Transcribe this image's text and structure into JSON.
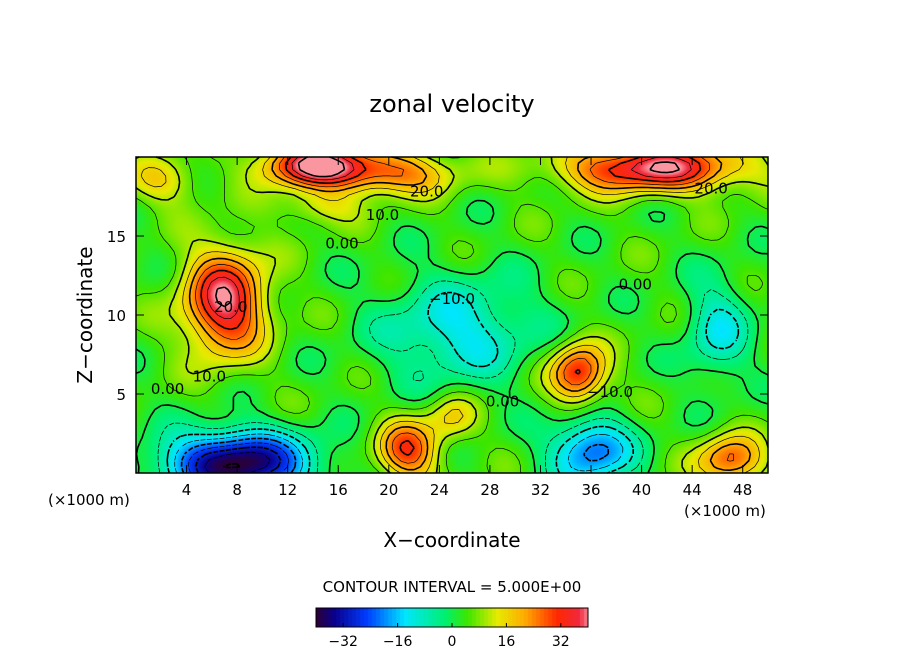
{
  "chart_data": {
    "type": "heatmap",
    "title": "zonal velocity",
    "xlabel": "X−coordinate",
    "ylabel": "Z−coordinate",
    "x_unit_left": "(×1000 m)",
    "x_unit_right": "(×1000 m)",
    "xlim": [
      0,
      50
    ],
    "ylim": [
      0,
      20
    ],
    "x_ticks": [
      4,
      8,
      12,
      16,
      20,
      24,
      28,
      32,
      36,
      40,
      44,
      48
    ],
    "y_ticks": [
      5,
      10,
      15
    ],
    "contour_interval_text": "CONTOUR INTERVAL = 5.000E+00",
    "colorbar": {
      "min": -40,
      "max": 40,
      "ticks": [
        -32,
        -16,
        0,
        16,
        32
      ],
      "tick_labels": [
        "−32",
        "−16",
        "0",
        "16",
        "32"
      ]
    },
    "contour_labels": [
      {
        "text": "20.0",
        "x": 23,
        "y": 17.5
      },
      {
        "text": "20.0",
        "x": 45.5,
        "y": 17.7
      },
      {
        "text": "10.0",
        "x": 19.5,
        "y": 16.0
      },
      {
        "text": "0.00",
        "x": 16.3,
        "y": 14.2
      },
      {
        "text": "20.0",
        "x": 7.5,
        "y": 10.2
      },
      {
        "text": "10.0",
        "x": 5.8,
        "y": 5.8
      },
      {
        "text": "0.00",
        "x": 2.5,
        "y": 5.0
      },
      {
        "text": "−10.0",
        "x": 25.0,
        "y": 10.7
      },
      {
        "text": "0.00",
        "x": 29.0,
        "y": 4.2
      },
      {
        "text": "−10.0",
        "x": 37.5,
        "y": 4.8
      },
      {
        "text": "0.00",
        "x": 39.5,
        "y": 11.6
      }
    ],
    "field_features": [
      {
        "x": 14,
        "y": 19.5,
        "amp": 36,
        "sx": 4,
        "sy": 1.4
      },
      {
        "x": 20,
        "y": 19.0,
        "amp": 22,
        "sx": 5,
        "sy": 1.4
      },
      {
        "x": 41,
        "y": 19.3,
        "amp": 36,
        "sx": 7,
        "sy": 1.5
      },
      {
        "x": 7,
        "y": 10.8,
        "amp": 36,
        "sx": 3.2,
        "sy": 3.3
      },
      {
        "x": 25.5,
        "y": 9.0,
        "amp": -16,
        "sx": 6,
        "sy": 3.3
      },
      {
        "x": 46,
        "y": 9.0,
        "amp": -14,
        "sx": 2.5,
        "sy": 3.2
      },
      {
        "x": 35,
        "y": 6.3,
        "amp": 30,
        "sx": 2.2,
        "sy": 1.9
      },
      {
        "x": 8,
        "y": 0.6,
        "amp": -44,
        "sx": 5.5,
        "sy": 2.0
      },
      {
        "x": 21.5,
        "y": 1.4,
        "amp": 26,
        "sx": 2.4,
        "sy": 1.9
      },
      {
        "x": 36,
        "y": 1.4,
        "amp": -26,
        "sx": 3.2,
        "sy": 2.1
      },
      {
        "x": 47,
        "y": 0.8,
        "amp": 24,
        "sx": 2.6,
        "sy": 1.6
      },
      {
        "x": 14.5,
        "y": 16.8,
        "amp": 10,
        "sx": 3,
        "sy": 1.1
      },
      {
        "x": 2,
        "y": 18.5,
        "amp": 12,
        "sx": 3,
        "sy": 1.5
      },
      {
        "x": 25,
        "y": 3.5,
        "amp": 12,
        "sx": 2,
        "sy": 1.5
      }
    ]
  }
}
